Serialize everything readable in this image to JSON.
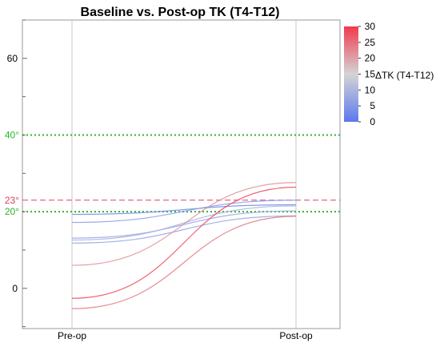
{
  "chart_data": {
    "type": "line",
    "title": "Baseline vs. Post-op TK (T4-T12)",
    "xlabel": "",
    "ylabel": "",
    "categories": [
      "Pre-op",
      "Post-op"
    ],
    "ylim": [
      -10.5,
      70
    ],
    "y_ticks": [
      0,
      60
    ],
    "y_tick_labels": [
      "0",
      "60"
    ],
    "y_minor_tick_step": 10,
    "grid": false,
    "reference_lines": [
      {
        "value": 40,
        "label": "40°",
        "color": "#2bb52b",
        "style": "dotted"
      },
      {
        "value": 23,
        "label": "23°",
        "color": "#e0405a",
        "style": "dashed"
      },
      {
        "value": 20,
        "label": "20°",
        "color": "#2bb52b",
        "style": "dotted"
      }
    ],
    "colorbar": {
      "label": "ΔTK (T4-T12)",
      "min": 0,
      "max": 30,
      "ticks": [
        "0",
        "5",
        "10",
        "15",
        "20",
        "25",
        "30"
      ],
      "colors": [
        "#5d78f0",
        "#d4d4d4",
        "#f03a4e"
      ],
      "placement": "top-right"
    },
    "series": [
      {
        "values": [
          19.3,
          21.8
        ]
      },
      {
        "values": [
          17.2,
          23.0
        ]
      },
      {
        "values": [
          13.1,
          20.2
        ]
      },
      {
        "values": [
          12.6,
          21.5
        ]
      },
      {
        "values": [
          11.8,
          18.9
        ]
      },
      {
        "values": [
          6.0,
          27.6
        ]
      },
      {
        "values": [
          -2.6,
          26.4
        ]
      },
      {
        "values": [
          -5.3,
          18.8
        ]
      }
    ]
  }
}
